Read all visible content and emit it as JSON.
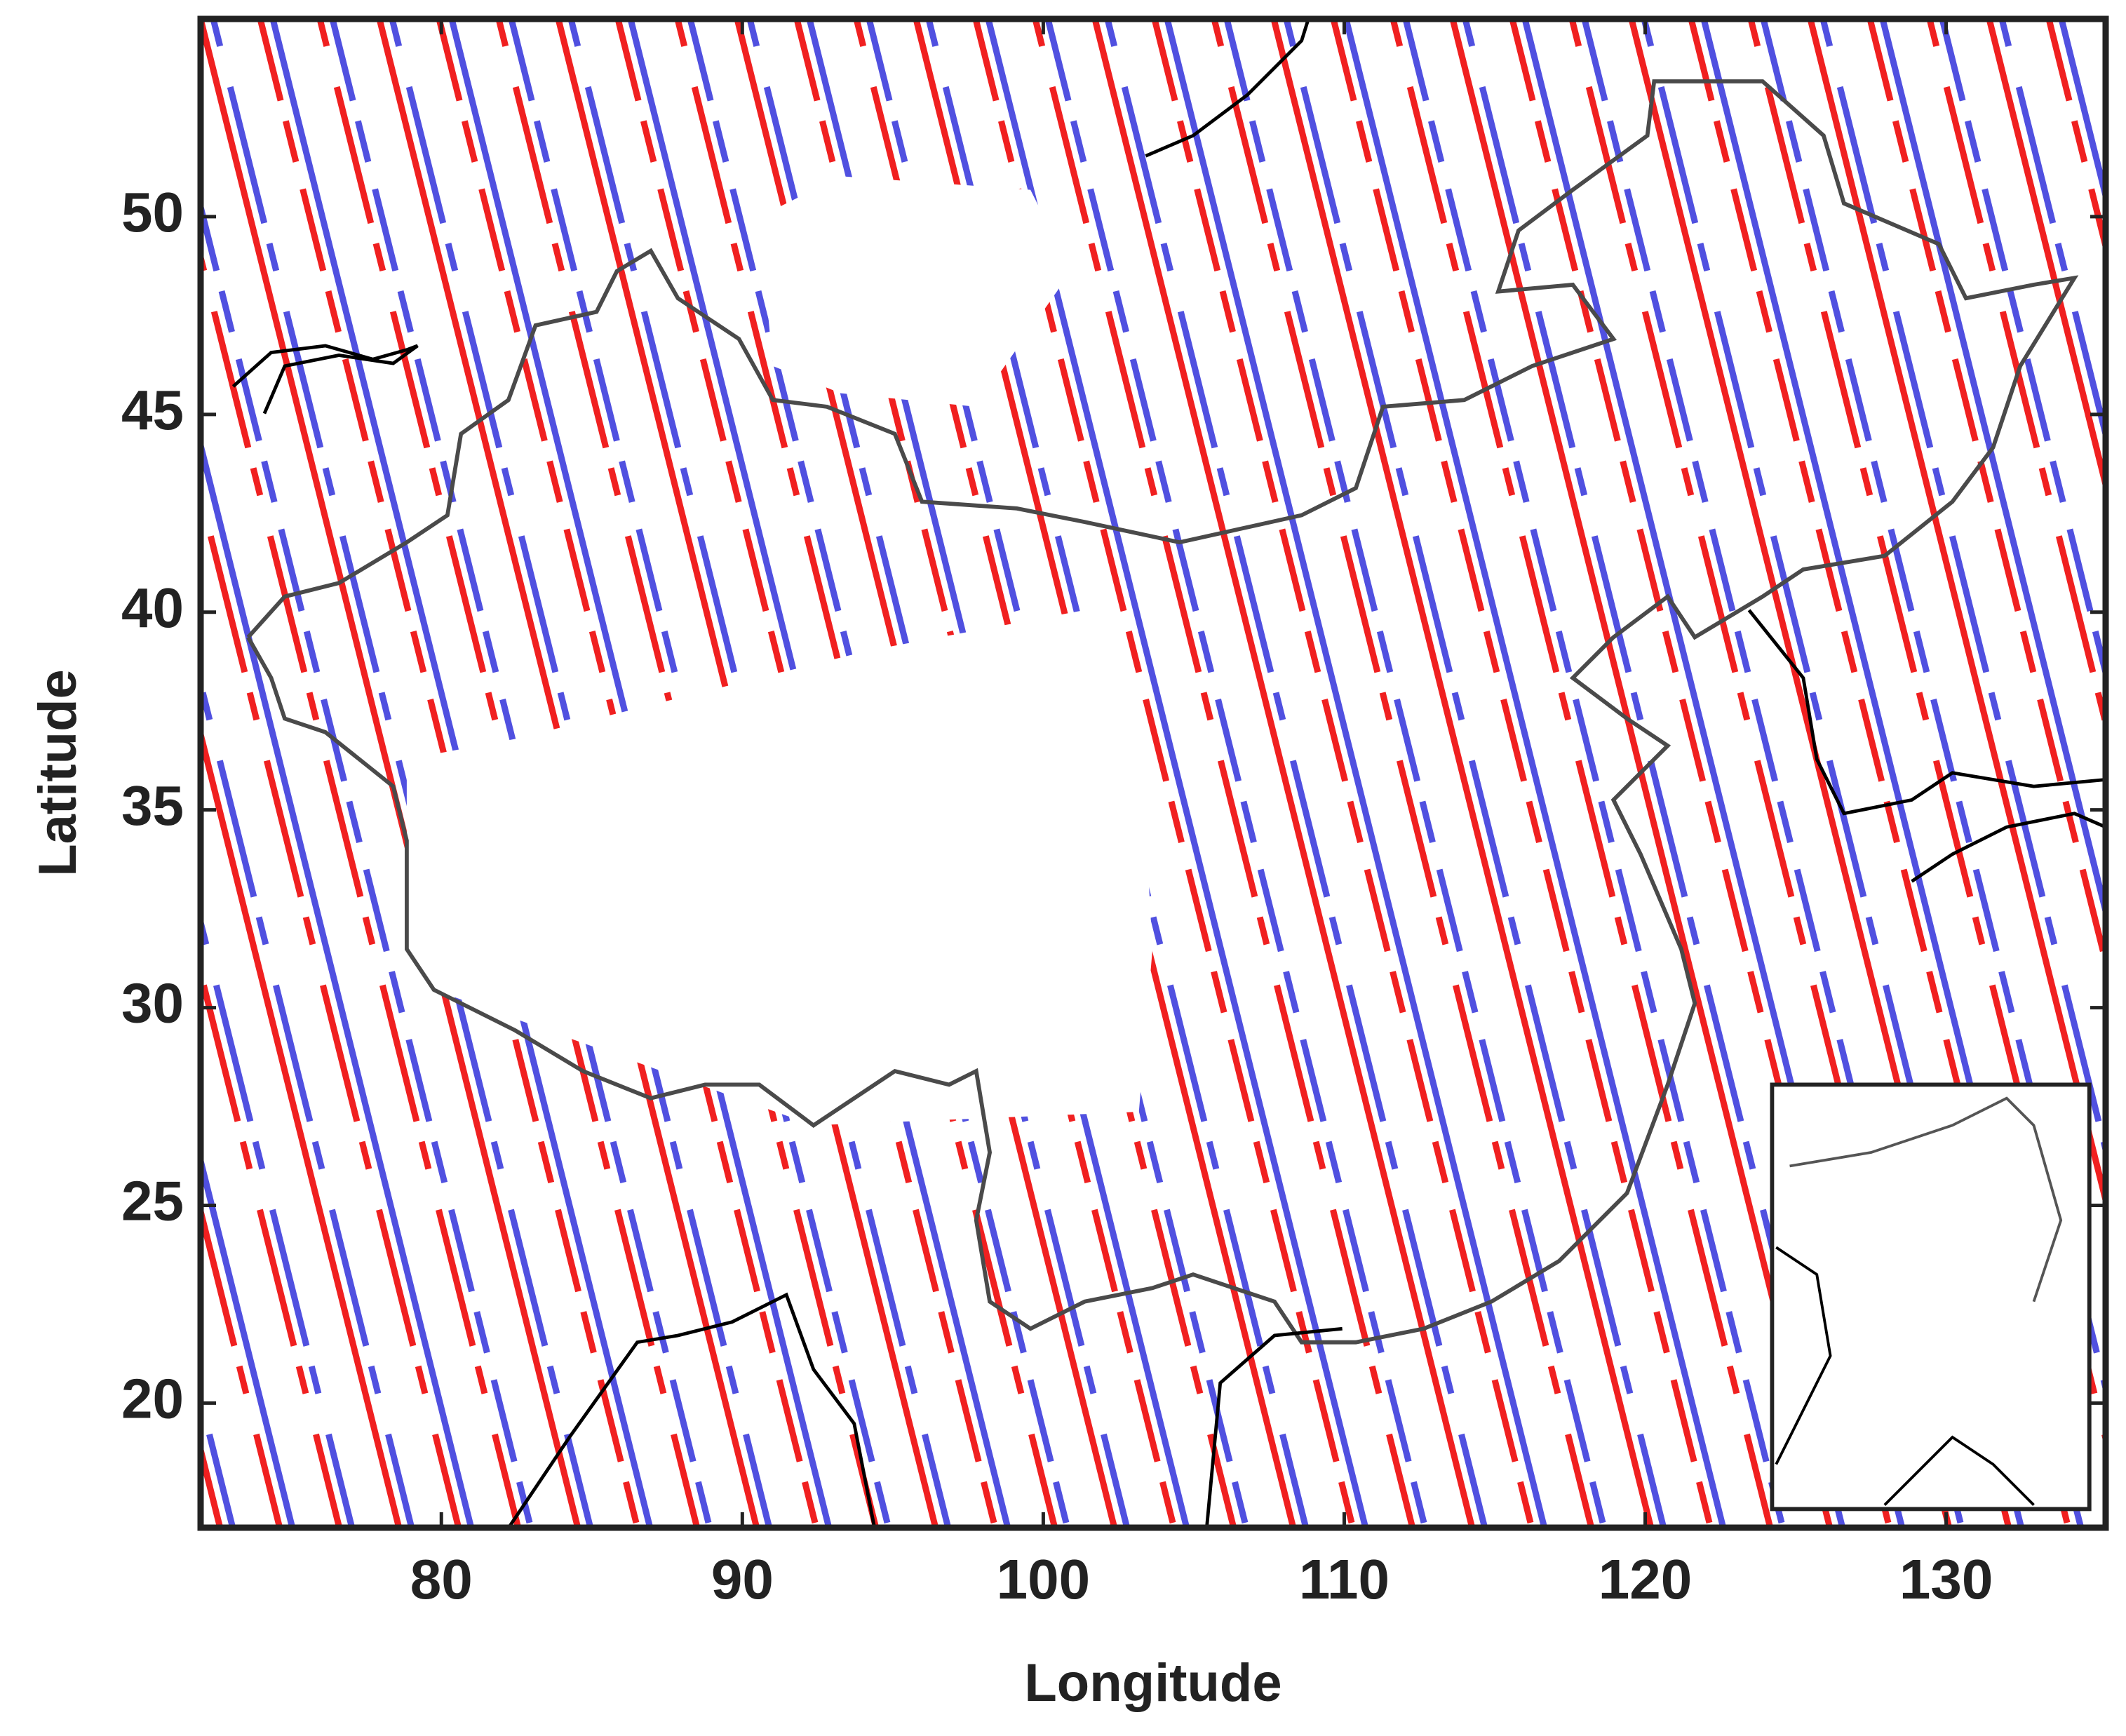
{
  "chart_data": {
    "type": "map",
    "xlabel": "Longitude",
    "ylabel": "Latitude",
    "xlim": [
      72,
      135.3
    ],
    "ylim": [
      16.85,
      55
    ],
    "xticks": [
      80,
      90,
      100,
      110,
      120,
      130
    ],
    "yticks": [
      20,
      25,
      30,
      35,
      40,
      45,
      50
    ],
    "track_colors": [
      "#f02020",
      "#5050e0"
    ]
  }
}
